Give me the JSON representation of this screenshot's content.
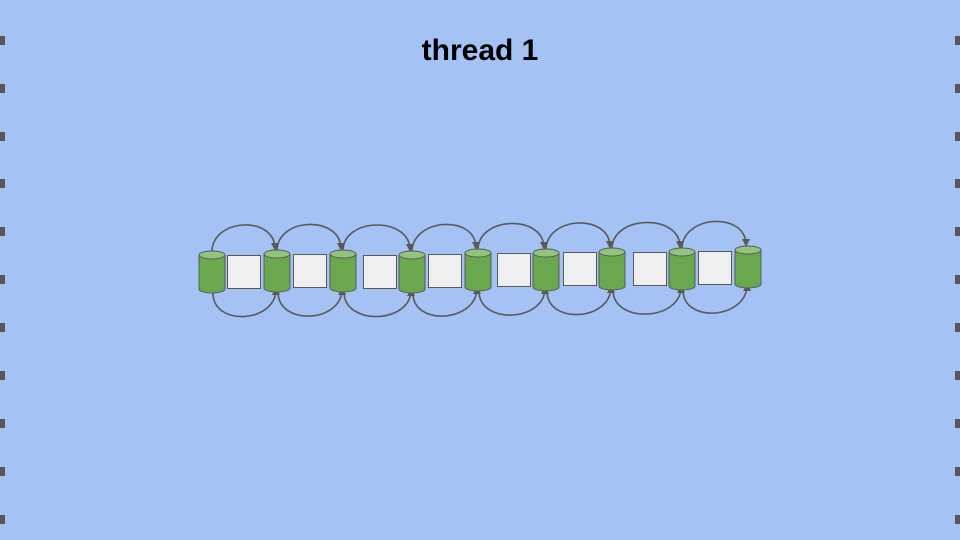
{
  "slide": {
    "title": "thread 1",
    "background_color": "#a4c2f4"
  },
  "diagram": {
    "sequence": [
      "cylinder",
      "square",
      "cylinder",
      "square",
      "cylinder",
      "square",
      "cylinder",
      "square",
      "cylinder",
      "square",
      "cylinder",
      "square",
      "cylinder",
      "square",
      "cylinder",
      "square",
      "cylinder"
    ],
    "cylinder_fill": "#6aa84f",
    "cylinder_top_fill": "#93c47d",
    "square_fill": "#efefef",
    "stroke_color": "#595959",
    "arrow_color": "#595959"
  }
}
